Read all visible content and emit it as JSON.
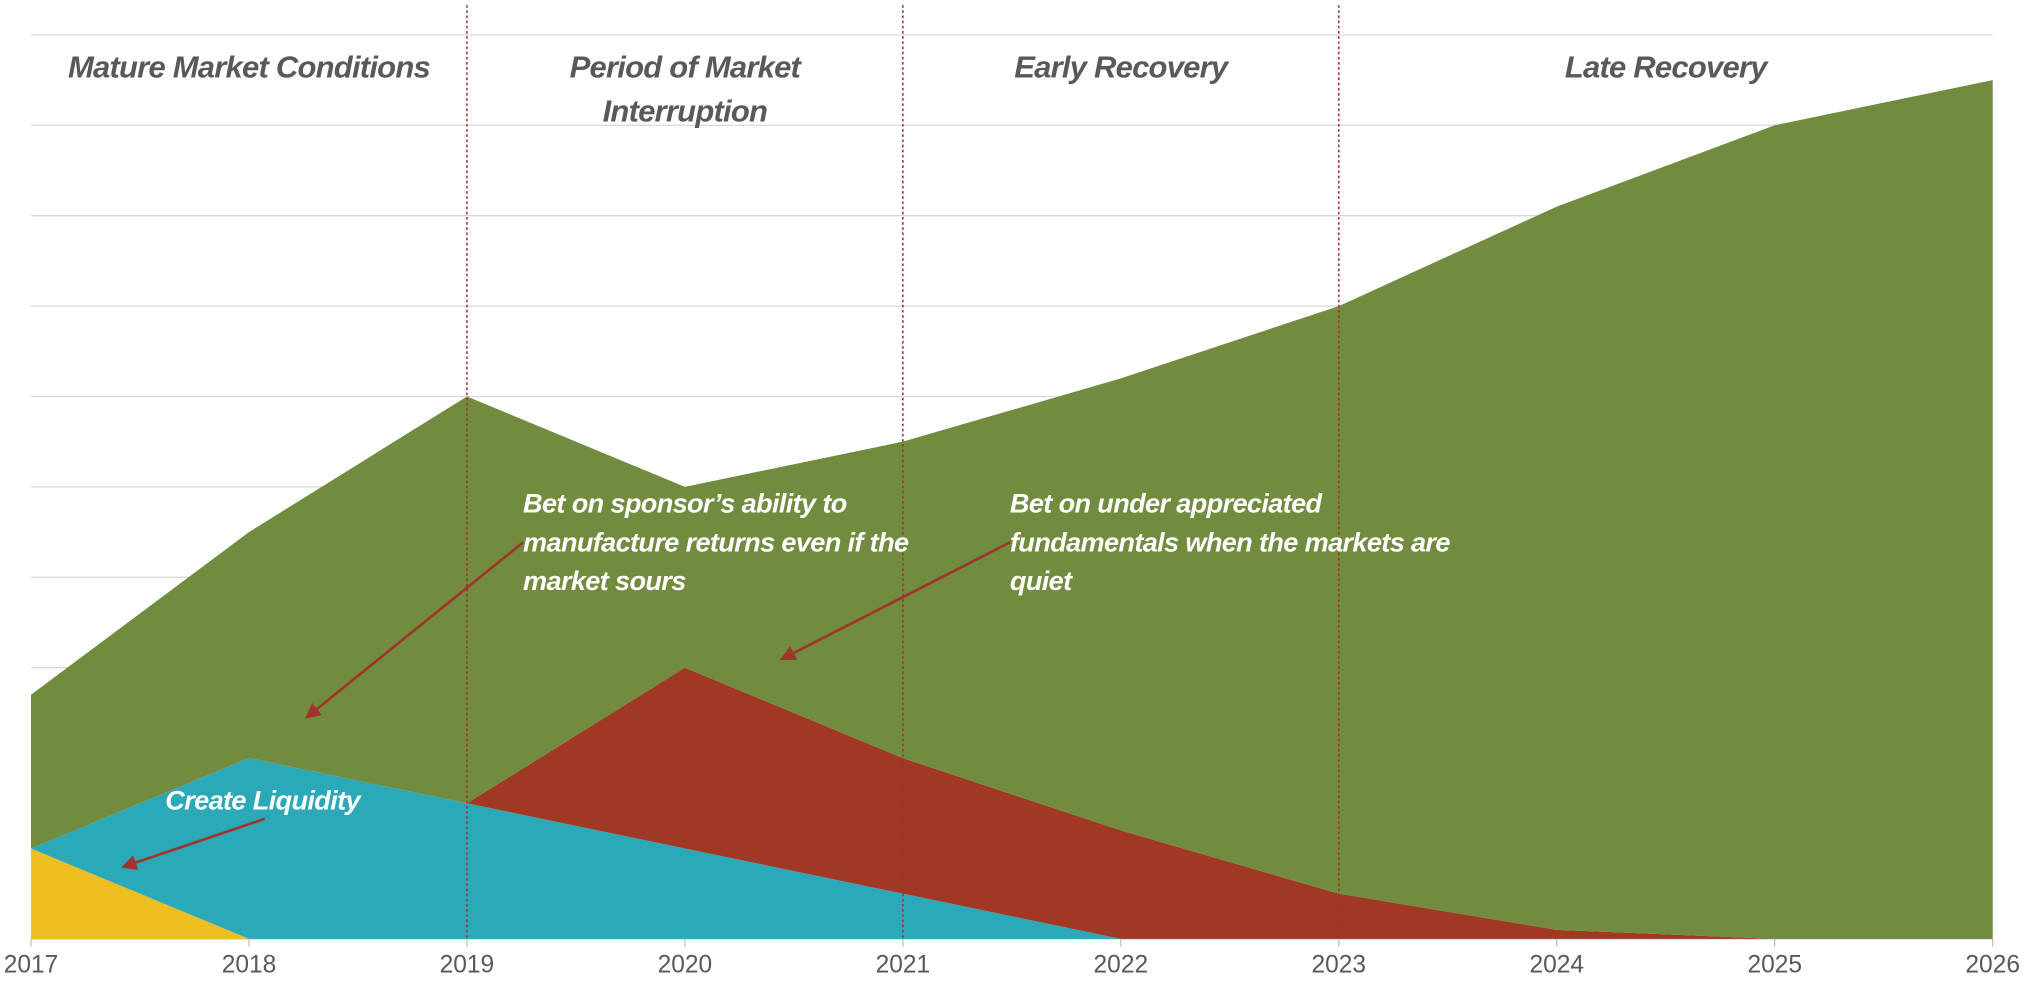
{
  "chart_data": {
    "type": "stacked-area",
    "x": [
      2017,
      2018,
      2019,
      2020,
      2021,
      2022,
      2023,
      2024,
      2025,
      2026
    ],
    "xlim": [
      2017,
      2026
    ],
    "xticks": [
      2017,
      2018,
      2019,
      2020,
      2021,
      2022,
      2023,
      2024,
      2025,
      2026
    ],
    "ylim": [
      0,
      10
    ],
    "yticks": [
      0,
      1,
      2,
      3,
      4,
      5,
      6,
      7,
      8,
      9,
      10
    ],
    "grid": true,
    "series": [
      {
        "name": null,
        "color": "#efbf22",
        "values": [
          1,
          0,
          0,
          0,
          0,
          0,
          0,
          0,
          0,
          0
        ]
      },
      {
        "name": null,
        "color": "#2ba9b9",
        "values": [
          0,
          2,
          1.5,
          1,
          0.5,
          0,
          0,
          0,
          0,
          0
        ]
      },
      {
        "name": null,
        "color": "#a03823",
        "values": [
          0,
          0,
          0,
          2,
          1.5,
          1.2,
          0.5,
          0.1,
          0,
          0
        ]
      },
      {
        "name": null,
        "color": "#718b3f",
        "values": [
          1.7,
          2.5,
          4.5,
          2,
          3.5,
          5,
          6.5,
          8,
          9,
          9.5
        ]
      }
    ],
    "phases": [
      {
        "label": "Mature Market Conditions",
        "start": 2017,
        "end": 2019
      },
      {
        "label": "Period of Market Interruption",
        "start": 2019,
        "end": 2021
      },
      {
        "label": "Early Recovery",
        "start": 2021,
        "end": 2023
      },
      {
        "label": "Late Recovery",
        "start": 2023,
        "end": 2026
      }
    ],
    "annotations": [
      {
        "text": "Bet on sponsor’s ability to manufacture returns even if the market sours"
      },
      {
        "text": "Bet on under appreciated fundamentals when the markets are quiet"
      },
      {
        "text": "Create Liquidity"
      }
    ]
  }
}
